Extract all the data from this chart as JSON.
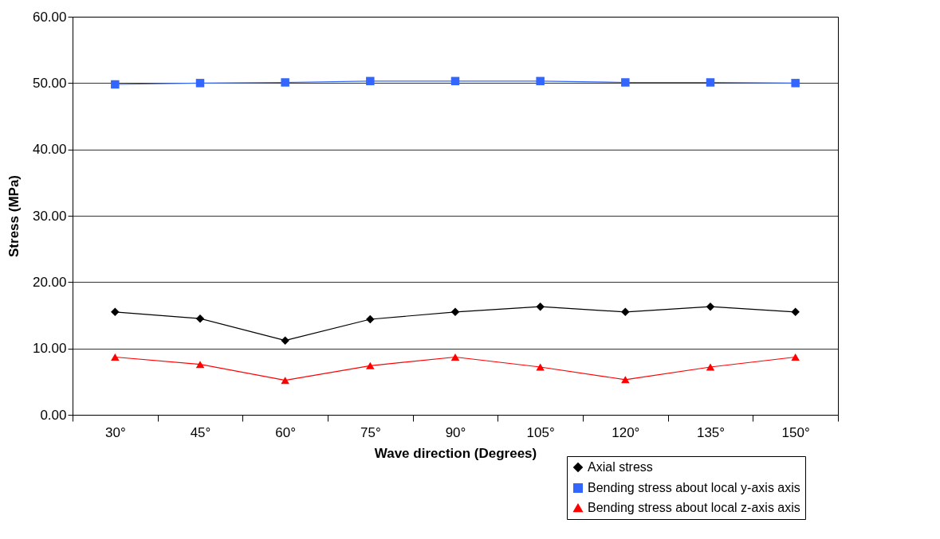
{
  "chart_data": {
    "type": "line",
    "xlabel": "Wave direction (Degrees)",
    "ylabel": "Stress (MPa)",
    "categories": [
      "30°",
      "45°",
      "60°",
      "75°",
      "90°",
      "105°",
      "120°",
      "135°",
      "150°"
    ],
    "ylim": [
      0,
      60
    ],
    "yticks": [
      {
        "value": 0,
        "label": "0.00"
      },
      {
        "value": 10,
        "label": "10.00"
      },
      {
        "value": 20,
        "label": "20.00"
      },
      {
        "value": 30,
        "label": "30.00"
      },
      {
        "value": 40,
        "label": "40.00"
      },
      {
        "value": 50,
        "label": "50.00"
      },
      {
        "value": 60,
        "label": "60.00"
      }
    ],
    "grid": "y",
    "legend": "bottom right",
    "line_style": "solid",
    "series": [
      {
        "name": "Axial stress",
        "color": "#000000",
        "marker": "diamond",
        "values": [
          15.5,
          14.5,
          11.2,
          14.4,
          15.5,
          16.3,
          15.5,
          16.3,
          15.5
        ]
      },
      {
        "name": "Bending stress about local y-axis axis",
        "color": "#3366ff",
        "marker": "square",
        "values": [
          49.8,
          50.0,
          50.1,
          50.3,
          50.3,
          50.3,
          50.1,
          50.1,
          50.0
        ]
      },
      {
        "name": "Bending stress about local z-axis axis",
        "color": "#ff0000",
        "marker": "triangle",
        "values": [
          8.7,
          7.6,
          5.2,
          7.4,
          8.7,
          7.2,
          5.3,
          7.2,
          8.7
        ]
      }
    ]
  }
}
